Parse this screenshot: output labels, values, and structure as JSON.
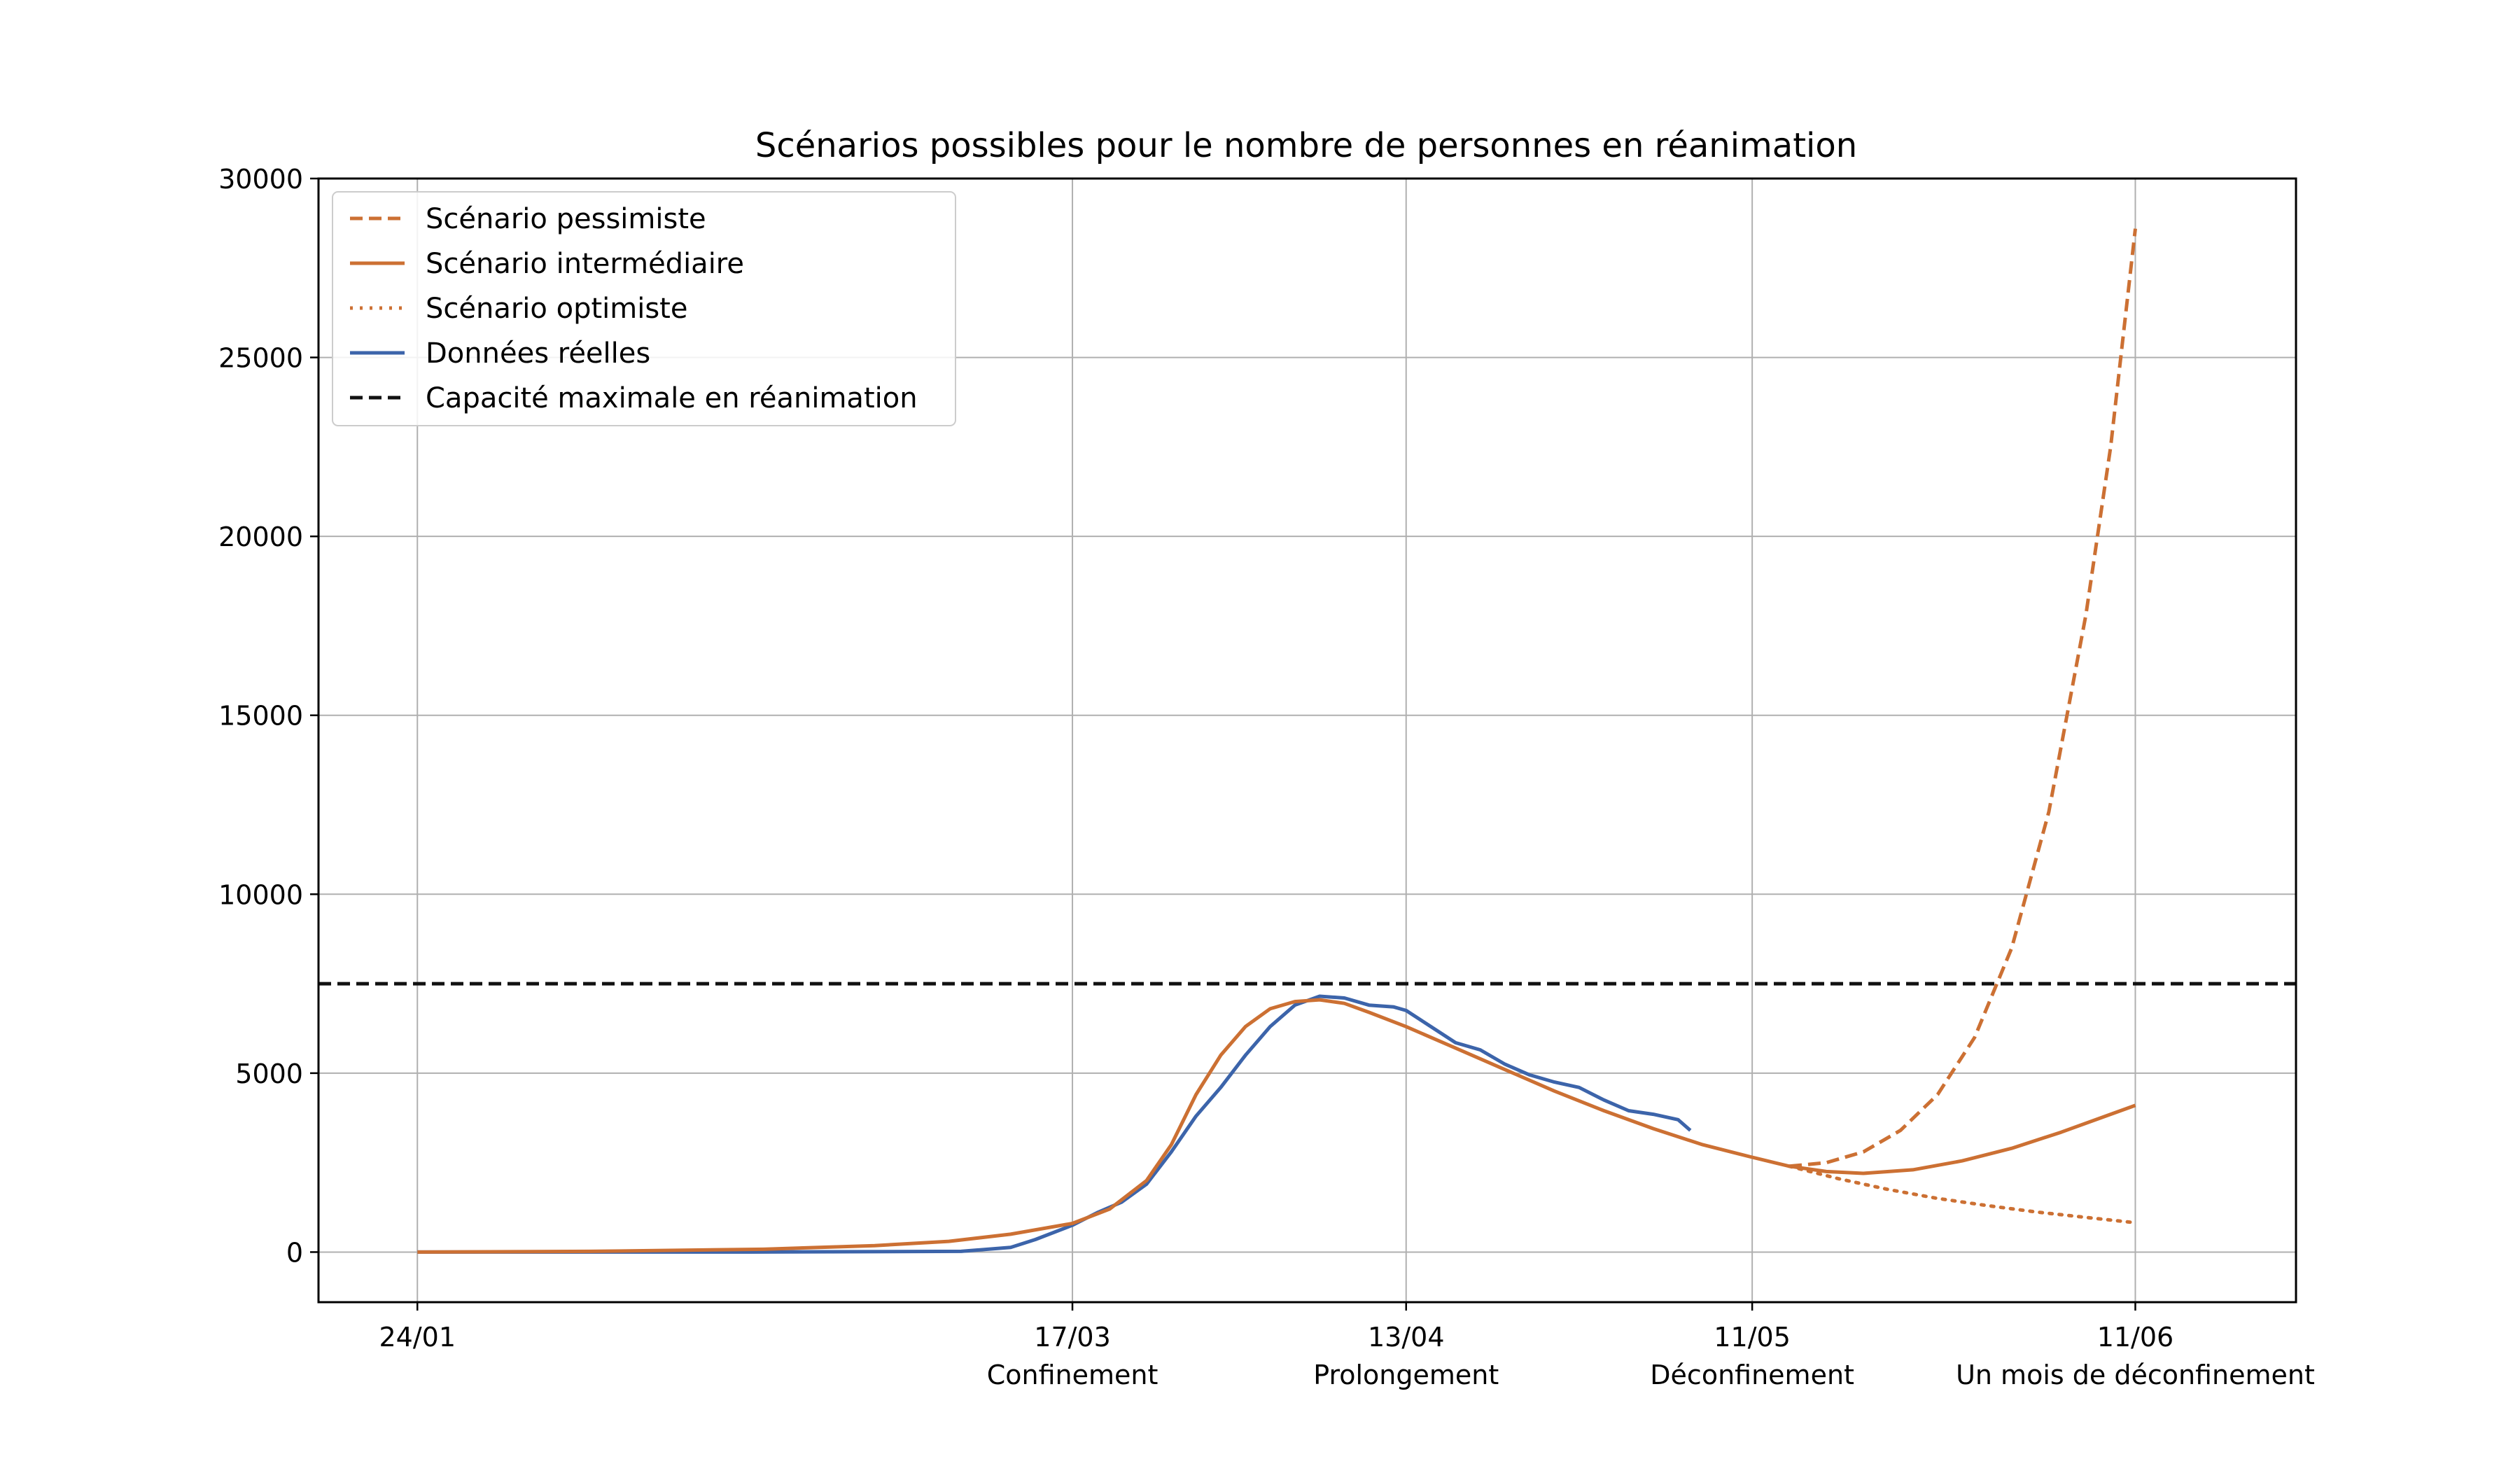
{
  "colors": {
    "scenario": "#cc7033",
    "real": "#3c64aa",
    "capacity": "#111111",
    "grid": "#b0b0b0",
    "axis": "#000000"
  },
  "chart_data": {
    "type": "line",
    "title": "Scénarios possibles pour le nombre de personnes en réanimation",
    "xlabel": "",
    "ylabel": "",
    "x_unit": "date (2020)",
    "xlim": [
      "2020-01-16",
      "2020-06-24"
    ],
    "ylim": [
      -1400,
      30000
    ],
    "yticks": [
      0,
      5000,
      10000,
      15000,
      20000,
      25000,
      30000
    ],
    "ytick_labels": [
      "0",
      "5000",
      "10000",
      "15000",
      "20000",
      "25000",
      "30000"
    ],
    "xticks": [
      {
        "date": "2020-01-24",
        "label": "24/01",
        "sublabel": ""
      },
      {
        "date": "2020-03-17",
        "label": "17/03",
        "sublabel": "Confinement"
      },
      {
        "date": "2020-04-13",
        "label": "13/04",
        "sublabel": "Prolongement"
      },
      {
        "date": "2020-05-11",
        "label": "11/05",
        "sublabel": "Déconfinement"
      },
      {
        "date": "2020-06-11",
        "label": "11/06",
        "sublabel": "Un mois de déconfinement"
      }
    ],
    "grid": true,
    "legend_position": "top-left",
    "hlines": [
      {
        "name": "Capacité maximale en réanimation",
        "y": 7500,
        "style": "dashed",
        "color": "#111111"
      }
    ],
    "series": [
      {
        "name": "Scénario pessimiste",
        "style": "dashed",
        "color": "#cc7033",
        "x": [
          "2020-05-14",
          "2020-05-17",
          "2020-05-20",
          "2020-05-23",
          "2020-05-26",
          "2020-05-29",
          "2020-06-01",
          "2020-06-04",
          "2020-06-07",
          "2020-06-09",
          "2020-06-11"
        ],
        "y": [
          2400,
          2500,
          2800,
          3400,
          4400,
          6000,
          8500,
          12300,
          17800,
          22500,
          28600
        ]
      },
      {
        "name": "Scénario intermédiaire",
        "style": "solid",
        "color": "#cc7033",
        "x": [
          "2020-01-24",
          "2020-02-07",
          "2020-02-21",
          "2020-03-01",
          "2020-03-07",
          "2020-03-12",
          "2020-03-17",
          "2020-03-20",
          "2020-03-23",
          "2020-03-25",
          "2020-03-27",
          "2020-03-29",
          "2020-03-31",
          "2020-04-02",
          "2020-04-04",
          "2020-04-06",
          "2020-04-08",
          "2020-04-10",
          "2020-04-13",
          "2020-04-17",
          "2020-04-21",
          "2020-04-25",
          "2020-04-29",
          "2020-05-03",
          "2020-05-07",
          "2020-05-11",
          "2020-05-14",
          "2020-05-17",
          "2020-05-20",
          "2020-05-24",
          "2020-05-28",
          "2020-06-01",
          "2020-06-05",
          "2020-06-09",
          "2020-06-11"
        ],
        "y": [
          0,
          20,
          80,
          180,
          300,
          500,
          800,
          1200,
          2000,
          3000,
          4400,
          5500,
          6300,
          6800,
          7000,
          7050,
          6950,
          6700,
          6300,
          5700,
          5100,
          4500,
          3950,
          3450,
          3000,
          2650,
          2400,
          2250,
          2200,
          2300,
          2550,
          2900,
          3350,
          3850,
          4100
        ]
      },
      {
        "name": "Scénario optimiste",
        "style": "dotted",
        "color": "#cc7033",
        "x": [
          "2020-05-14",
          "2020-05-18",
          "2020-05-22",
          "2020-05-26",
          "2020-05-30",
          "2020-06-03",
          "2020-06-07",
          "2020-06-11"
        ],
        "y": [
          2400,
          2050,
          1750,
          1500,
          1300,
          1120,
          970,
          820
        ]
      },
      {
        "name": "Données réelles",
        "style": "solid",
        "color": "#3c64aa",
        "x": [
          "2020-01-24",
          "2020-02-20",
          "2020-03-08",
          "2020-03-12",
          "2020-03-14",
          "2020-03-17",
          "2020-03-19",
          "2020-03-21",
          "2020-03-23",
          "2020-03-25",
          "2020-03-27",
          "2020-03-29",
          "2020-03-31",
          "2020-04-02",
          "2020-04-04",
          "2020-04-06",
          "2020-04-08",
          "2020-04-10",
          "2020-04-12",
          "2020-04-13",
          "2020-04-15",
          "2020-04-17",
          "2020-04-19",
          "2020-04-21",
          "2020-04-23",
          "2020-04-25",
          "2020-04-27",
          "2020-04-29",
          "2020-05-01",
          "2020-05-03",
          "2020-05-05",
          "2020-05-06"
        ],
        "y": [
          0,
          0,
          20,
          130,
          350,
          750,
          1100,
          1400,
          1900,
          2800,
          3800,
          4600,
          5500,
          6300,
          6900,
          7150,
          7100,
          6900,
          6850,
          6750,
          6300,
          5850,
          5650,
          5250,
          4950,
          4750,
          4600,
          4250,
          3950,
          3850,
          3700,
          3400
        ]
      }
    ]
  }
}
